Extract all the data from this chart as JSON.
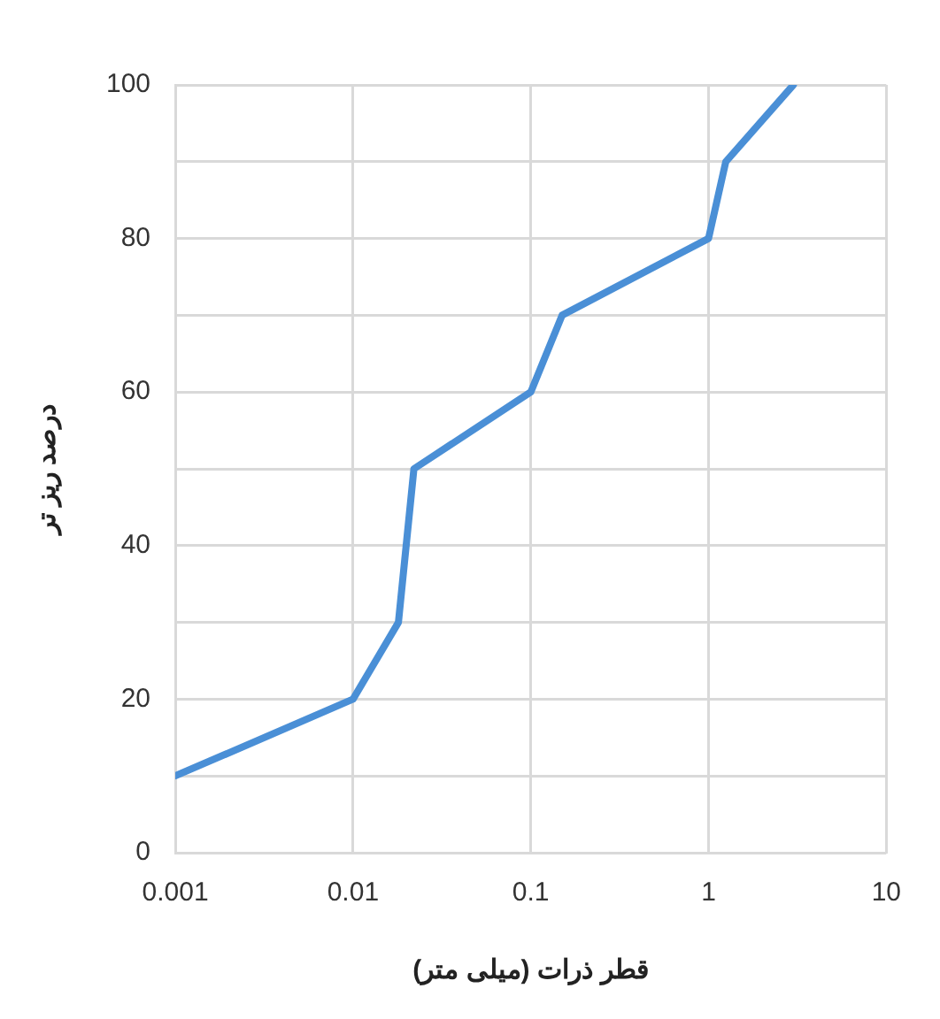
{
  "chart_data": {
    "type": "line",
    "xlabel": "قطر ذرات (میلی متر)",
    "ylabel": "درصد ریز تر",
    "log": "x",
    "xlim": [
      0.001,
      10
    ],
    "xticks": [
      0.001,
      0.01,
      0.1,
      1,
      10
    ],
    "ylim": [
      0,
      100
    ],
    "yticks": [
      0,
      {
        "value": 10,
        "label": null
      },
      20,
      {
        "value": 30,
        "label": null
      },
      40,
      {
        "value": 50,
        "label": null
      },
      60,
      {
        "value": 70,
        "label": null
      },
      80,
      {
        "value": 90,
        "label": null
      },
      100
    ],
    "grid": true,
    "legend": false,
    "marker": "none",
    "line_style": "solid",
    "x": [
      0.001,
      0.01,
      0.018,
      0.022,
      0.1,
      0.15,
      1,
      1.25,
      3
    ],
    "series": [
      {
        "color": "#4a8fd6",
        "values": [
          10,
          20,
          30,
          50,
          60,
          70,
          80,
          90,
          100
        ]
      }
    ]
  }
}
